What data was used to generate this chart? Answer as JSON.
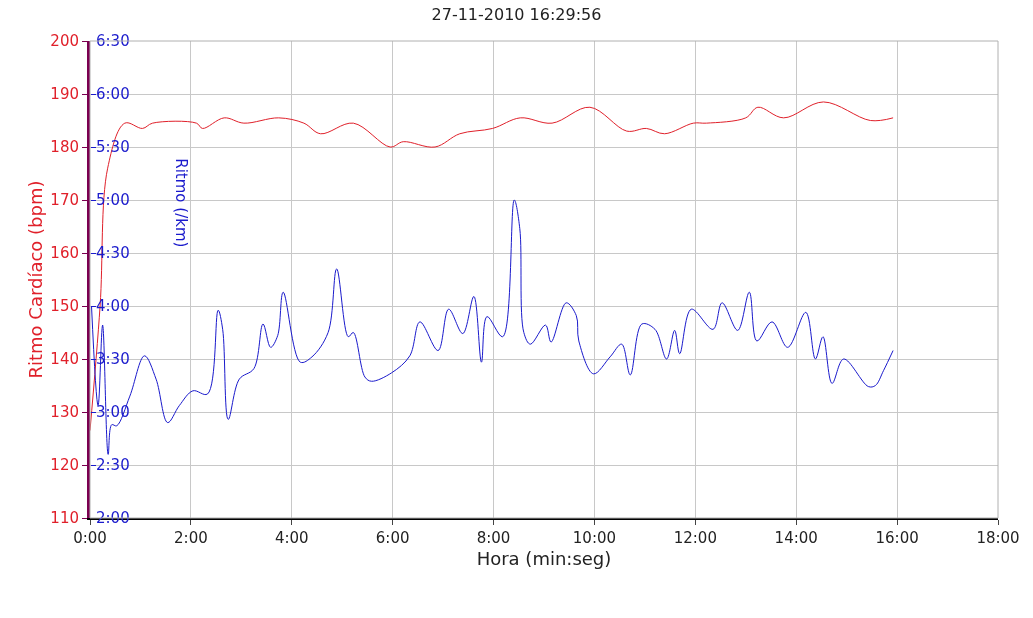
{
  "chart_data": {
    "type": "line",
    "title": "27-11-2010 16:29:56",
    "xlabel": "Hora (min:seg)",
    "ylabel": "Ritmo Cardíaco (bpm)",
    "y2label": "Ritmo (/km)",
    "grid": true,
    "marker": "none",
    "line_style": "solid",
    "xlim": [
      0,
      18
    ],
    "xticks": [
      {
        "value": 0,
        "label": "0:00"
      },
      {
        "value": 2,
        "label": "2:00"
      },
      {
        "value": 4,
        "label": "4:00"
      },
      {
        "value": 6,
        "label": "6:00"
      },
      {
        "value": 8,
        "label": "8:00"
      },
      {
        "value": 10,
        "label": "10:00"
      },
      {
        "value": 12,
        "label": "12:00"
      },
      {
        "value": 14,
        "label": "14:00"
      },
      {
        "value": 16,
        "label": "16:00"
      },
      {
        "value": 18,
        "label": "18:00"
      }
    ],
    "ylim": [
      110,
      200
    ],
    "yticks": [
      110,
      120,
      130,
      140,
      150,
      160,
      170,
      180,
      190,
      200
    ],
    "y2lim": [
      2,
      6.5
    ],
    "y2ticks": [
      {
        "value": 2,
        "label": "2:00"
      },
      {
        "value": 2.5,
        "label": "2:30"
      },
      {
        "value": 3,
        "label": "3:00"
      },
      {
        "value": 3.5,
        "label": "3:30"
      },
      {
        "value": 4,
        "label": "4:00"
      },
      {
        "value": 4.5,
        "label": "4:30"
      },
      {
        "value": 5,
        "label": "5:00"
      },
      {
        "value": 5.5,
        "label": "5:30"
      },
      {
        "value": 6,
        "label": "6:00"
      },
      {
        "value": 6.5,
        "label": "6:30"
      }
    ],
    "series": [
      {
        "color": "#e0202a",
        "x": [
          0,
          0.2,
          0.35,
          0.69,
          1.04,
          1.24,
          2.11,
          2.23,
          2.66,
          3.05,
          3.74,
          4.24,
          4.57,
          5.22,
          5.95,
          6.21,
          6.84,
          7.33,
          7.98,
          8.53,
          9.16,
          9.91,
          10.64,
          11.03,
          11.39,
          11.96,
          12.22,
          13.0,
          13.24,
          13.75,
          14.54,
          15.47,
          15.92
        ],
        "values": [
          126.5,
          150,
          176,
          184.5,
          183.5,
          184.5,
          184.5,
          183.5,
          185.5,
          184.5,
          185.5,
          184.5,
          182.5,
          184.5,
          180,
          181,
          180,
          182.5,
          183.5,
          185.5,
          184.5,
          187.5,
          183,
          183.5,
          182.5,
          184.5,
          184.5,
          185.5,
          187.5,
          185.5,
          188.5,
          185,
          185.5
        ]
      },
      {
        "color": "#1a1acc",
        "axis": "y2",
        "x": [
          0.03,
          0.16,
          0.25,
          0.36,
          0.43,
          0.53,
          0.79,
          1.08,
          1.31,
          1.54,
          1.77,
          2.04,
          2.33,
          2.54,
          2.63,
          2.74,
          2.96,
          3.25,
          3.43,
          3.58,
          3.72,
          3.83,
          4.17,
          4.4,
          4.72,
          4.89,
          5.12,
          5.22,
          5.45,
          5.58,
          5.98,
          6.34,
          6.54,
          6.9,
          7.11,
          7.39,
          7.61,
          7.76,
          7.87,
          8.18,
          8.41,
          8.52,
          8.6,
          8.73,
          9.03,
          9.14,
          9.44,
          9.64,
          9.69,
          9.98,
          10.31,
          10.54,
          10.71,
          10.94,
          11.2,
          11.43,
          11.59,
          11.69,
          11.92,
          12.35,
          12.53,
          12.84,
          13.07,
          13.22,
          13.52,
          13.83,
          14.19,
          14.38,
          14.53,
          14.71,
          14.94,
          15.43,
          15.57,
          15.73,
          15.92
        ],
        "values": [
          4.0,
          3.06,
          3.82,
          2.6,
          2.88,
          2.87,
          3.15,
          3.53,
          3.31,
          2.9,
          3.06,
          3.2,
          3.17,
          3.96,
          3.78,
          2.93,
          3.31,
          3.41,
          3.83,
          3.61,
          3.72,
          4.13,
          3.47,
          3.52,
          3.75,
          4.35,
          3.71,
          3.75,
          3.33,
          3.29,
          3.37,
          3.53,
          3.85,
          3.58,
          3.97,
          3.74,
          4.09,
          3.47,
          3.9,
          3.71,
          5.0,
          4.73,
          3.75,
          3.64,
          3.82,
          3.66,
          4.03,
          3.91,
          3.67,
          3.36,
          3.52,
          3.64,
          3.35,
          3.83,
          3.78,
          3.5,
          3.77,
          3.55,
          3.97,
          3.78,
          4.03,
          3.77,
          4.13,
          3.67,
          3.85,
          3.61,
          3.94,
          3.5,
          3.71,
          3.27,
          3.5,
          3.24,
          3.25,
          3.39,
          3.58
        ]
      }
    ]
  }
}
